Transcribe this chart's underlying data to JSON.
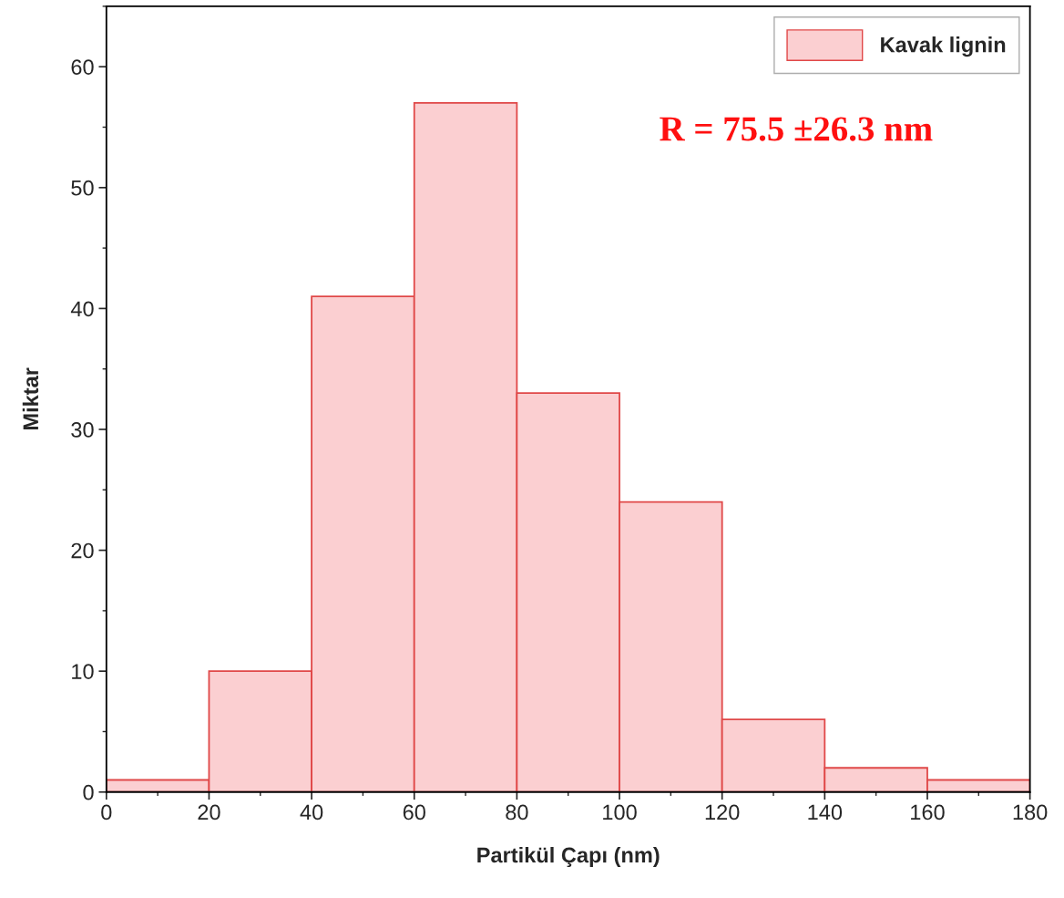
{
  "chart_data": {
    "type": "histogram",
    "xlabel": "Partikül Çapı (nm)",
    "ylabel": "Miktar",
    "bins": [
      0,
      20,
      40,
      60,
      80,
      100,
      120,
      140,
      160,
      180
    ],
    "series": [
      {
        "name": "Kavak lignin",
        "color": "#fbcfd1",
        "values": [
          1,
          10,
          41,
          57,
          33,
          24,
          6,
          2,
          1
        ]
      }
    ],
    "xlim": [
      0,
      180
    ],
    "xticks": [
      0,
      20,
      40,
      60,
      80,
      100,
      120,
      140,
      160,
      180
    ],
    "ylim": [
      0,
      65
    ],
    "yticks": [
      0,
      10,
      20,
      30,
      40,
      50,
      60
    ],
    "annotations": [
      "R = 75.5 ±26.3 nm"
    ],
    "legend": "top right",
    "grid": false
  }
}
